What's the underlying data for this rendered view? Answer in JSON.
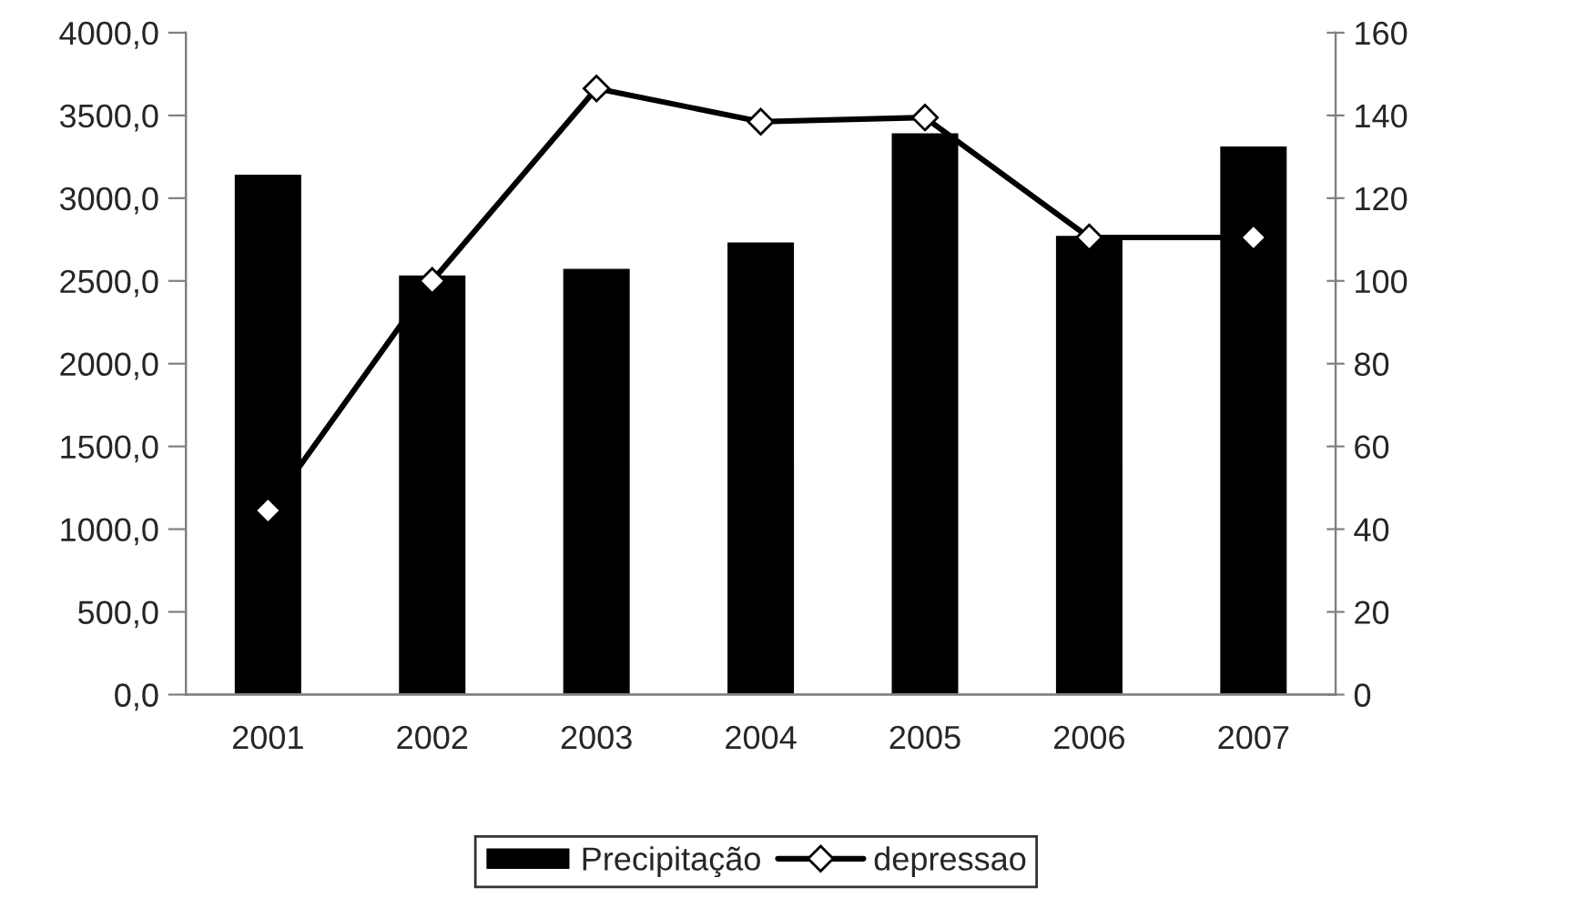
{
  "chart_data": {
    "type": "bar",
    "categories": [
      "2001",
      "2002",
      "2003",
      "2004",
      "2005",
      "2006",
      "2007"
    ],
    "series": [
      {
        "name": "Precipitação",
        "color": "#000000",
        "values": [
          3150,
          2540,
          2580,
          2740,
          3400,
          2780,
          3320
        ]
      },
      {
        "name": "depressao",
        "type": "line",
        "axis": "y2",
        "color": "#000000",
        "marker": "diamond",
        "values": [
          44.5,
          100,
          146.5,
          138.5,
          139.5,
          110.5,
          110.5
        ]
      }
    ],
    "ylim": [
      0,
      4000
    ],
    "yticks": [
      {
        "value": 0,
        "label": "0,0"
      },
      {
        "value": 500,
        "label": "500,0"
      },
      {
        "value": 1000,
        "label": "1000,0"
      },
      {
        "value": 1500,
        "label": "1500,0"
      },
      {
        "value": 2000,
        "label": "2000,0"
      },
      {
        "value": 2500,
        "label": "2500,0"
      },
      {
        "value": 3000,
        "label": "3000,0"
      },
      {
        "value": 3500,
        "label": "3500,0"
      },
      {
        "value": 4000,
        "label": "4000,0"
      }
    ],
    "y2lim": [
      0,
      160
    ],
    "y2ticks": [
      0,
      20,
      40,
      60,
      80,
      100,
      120,
      140,
      160
    ],
    "grid": false,
    "legend": "bottom"
  }
}
